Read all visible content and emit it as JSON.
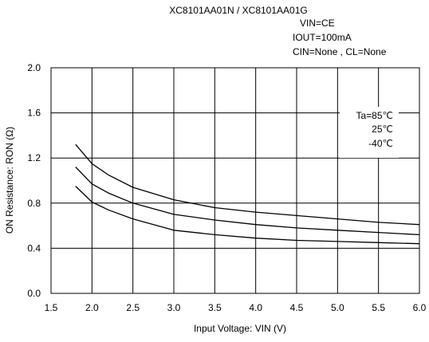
{
  "chart_data": {
    "type": "line",
    "title": "XC8101AA01N / XC8101AA01G",
    "conditions": [
      "VIN=CE",
      "IOUT=100mA",
      "CIN=None , CL=None"
    ],
    "xlabel": "Input Voltage: VIN (V)",
    "ylabel": "ON Resistance: RON (Ω)",
    "xlim": [
      1.5,
      6.0
    ],
    "ylim": [
      0.0,
      2.0
    ],
    "xticks": [
      "1.5",
      "2.0",
      "2.5",
      "3.0",
      "3.5",
      "4.0",
      "4.5",
      "5.0",
      "5.5",
      "6.0"
    ],
    "yticks": [
      "0.0",
      "0.4",
      "0.8",
      "1.2",
      "1.6",
      "2.0"
    ],
    "grid": true,
    "legend_position": "top-right",
    "series": [
      {
        "name": "Ta=85℃",
        "x": [
          1.8,
          2.0,
          2.2,
          2.5,
          3.0,
          3.5,
          4.0,
          4.5,
          5.0,
          5.5,
          6.0
        ],
        "y": [
          1.32,
          1.15,
          1.05,
          0.94,
          0.83,
          0.76,
          0.72,
          0.69,
          0.66,
          0.63,
          0.61
        ]
      },
      {
        "name": "25℃",
        "x": [
          1.8,
          2.0,
          2.2,
          2.5,
          3.0,
          3.5,
          4.0,
          4.5,
          5.0,
          5.5,
          6.0
        ],
        "y": [
          1.12,
          0.97,
          0.89,
          0.8,
          0.7,
          0.65,
          0.61,
          0.58,
          0.56,
          0.54,
          0.52
        ]
      },
      {
        "name": "-40℃",
        "x": [
          1.8,
          2.0,
          2.2,
          2.5,
          3.0,
          3.5,
          4.0,
          4.5,
          5.0,
          5.5,
          6.0
        ],
        "y": [
          0.95,
          0.81,
          0.74,
          0.66,
          0.56,
          0.52,
          0.49,
          0.47,
          0.46,
          0.45,
          0.44
        ]
      }
    ]
  }
}
